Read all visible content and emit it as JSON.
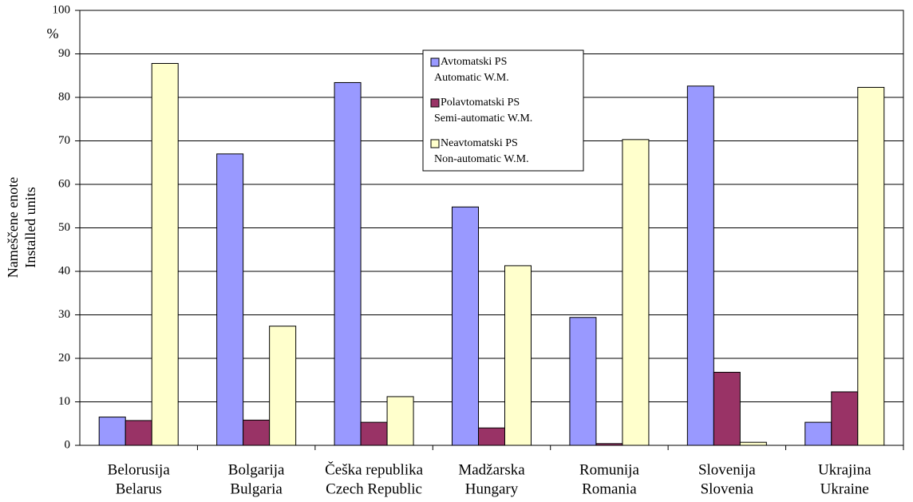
{
  "chart_data": {
    "type": "bar",
    "ylabel": [
      "Nameščene enote",
      "Installed units"
    ],
    "unit": "%",
    "categories": [
      [
        "Belorusija",
        "Belarus"
      ],
      [
        "Bolgarija",
        "Bulgaria"
      ],
      [
        "Češka republika",
        "Czech Republic"
      ],
      [
        "Madžarska",
        "Hungary"
      ],
      [
        "Romunija",
        "Romania"
      ],
      [
        "Slovenija",
        "Slovenia"
      ],
      [
        "Ukrajina",
        "Ukraine"
      ]
    ],
    "series": [
      {
        "name": [
          "Avtomatski PS",
          "Automatic W.M."
        ],
        "color": "#9999ff",
        "values": [
          6.5,
          67,
          83.4,
          54.8,
          29.4,
          82.6,
          5.3
        ]
      },
      {
        "name": [
          "Polavtomatski PS",
          "Semi-automatic W.M."
        ],
        "color": "#993366",
        "values": [
          5.7,
          5.8,
          5.3,
          4.0,
          0.4,
          16.8,
          12.3
        ]
      },
      {
        "name": [
          "Neavtomatski PS",
          "Non-automatic W.M."
        ],
        "color": "#ffffcc",
        "values": [
          87.8,
          27.4,
          11.2,
          41.3,
          70.3,
          0.7,
          82.3
        ]
      }
    ],
    "ylim": [
      0,
      100
    ],
    "yticks": [
      0,
      10,
      20,
      30,
      40,
      50,
      60,
      70,
      80,
      90,
      100
    ],
    "grid": true
  }
}
